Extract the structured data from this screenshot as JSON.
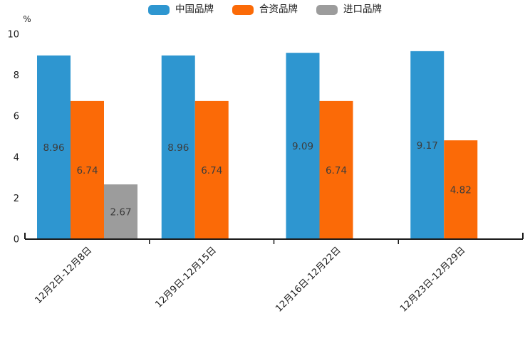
{
  "chart_data": {
    "type": "bar",
    "title": "",
    "ylabel": "%",
    "xlabel": "",
    "categories": [
      "12月2日-12月8日",
      "12月9日-12月15日",
      "12月16日-12月22日",
      "12月23日-12月29日"
    ],
    "series": [
      {
        "name": "中国品牌",
        "color": "#2e96d0",
        "values": [
          8.96,
          8.96,
          9.09,
          9.17
        ]
      },
      {
        "name": "合资品牌",
        "color": "#fb6a07",
        "values": [
          6.74,
          6.74,
          6.74,
          4.82
        ]
      },
      {
        "name": "进口品牌",
        "color": "#9c9c9c",
        "values": [
          2.67,
          null,
          null,
          null
        ]
      }
    ],
    "ylim": [
      0,
      10
    ],
    "yticks": [
      0,
      2,
      4,
      6,
      8,
      10
    ],
    "grid": false,
    "legend_position": "top",
    "bar_label_color": "#3c3c3c",
    "axis_color": "#1a1a1a",
    "background_color": "#ffffff"
  }
}
